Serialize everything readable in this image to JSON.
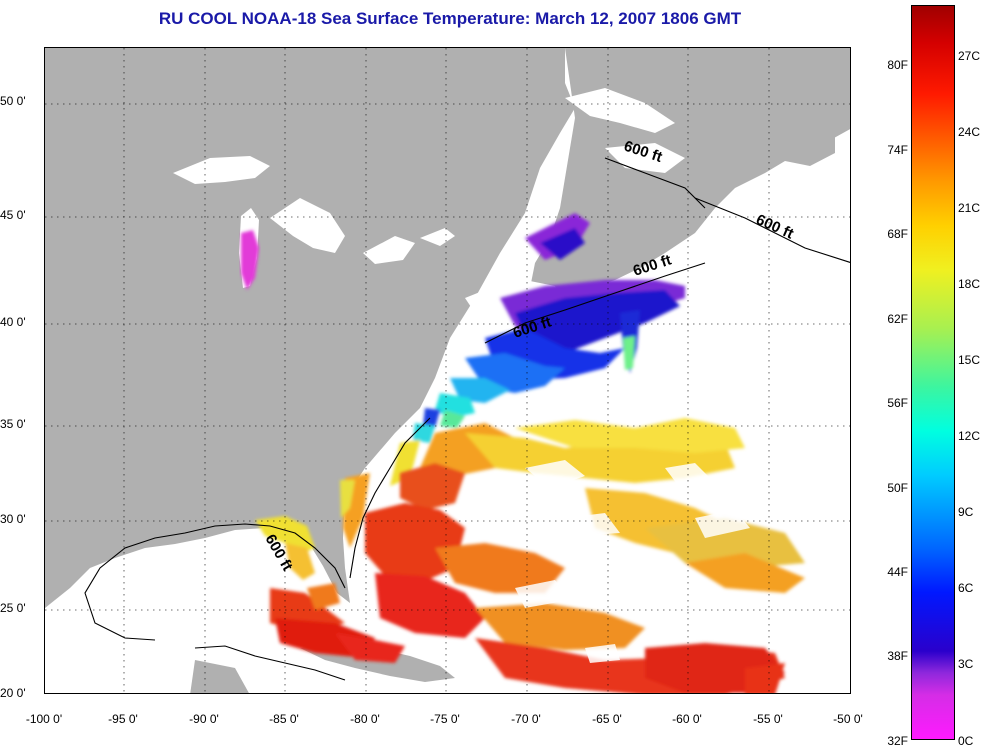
{
  "title": "RU COOL  NOAA-18  Sea Surface Temperature:  March 12, 2007 1806 GMT",
  "map": {
    "lat_labels": [
      "50 0'",
      "45 0'",
      "40 0'",
      "35 0'",
      "30 0'",
      "25 0'",
      "20 0'"
    ],
    "lon_labels": [
      "-100 0'",
      "-95 0'",
      "-90 0'",
      "-85 0'",
      "-80 0'",
      "-75 0'",
      "-70 0'",
      "-65 0'",
      "-60 0'",
      "-55 0'",
      "-50 0'"
    ],
    "lon_range": [
      -100,
      -50
    ],
    "lat_range": [
      20,
      52
    ],
    "isobath_labels": [
      "600 ft",
      "600 ft",
      "600 ft",
      "600 ft",
      "600 ft"
    ],
    "colors": {
      "land": "#b0b0b0",
      "cloud": "#ffffff",
      "cold": "#1a14cc",
      "warm": "#e81a0a"
    }
  },
  "colorbar": {
    "fahrenheit_labels": [
      "80F",
      "74F",
      "68F",
      "62F",
      "56F",
      "50F",
      "44F",
      "38F",
      "32F"
    ],
    "celsius_labels": [
      "27C",
      "24C",
      "21C",
      "18C",
      "15C",
      "12C",
      "9C",
      "6C",
      "3C",
      "0C"
    ]
  }
}
